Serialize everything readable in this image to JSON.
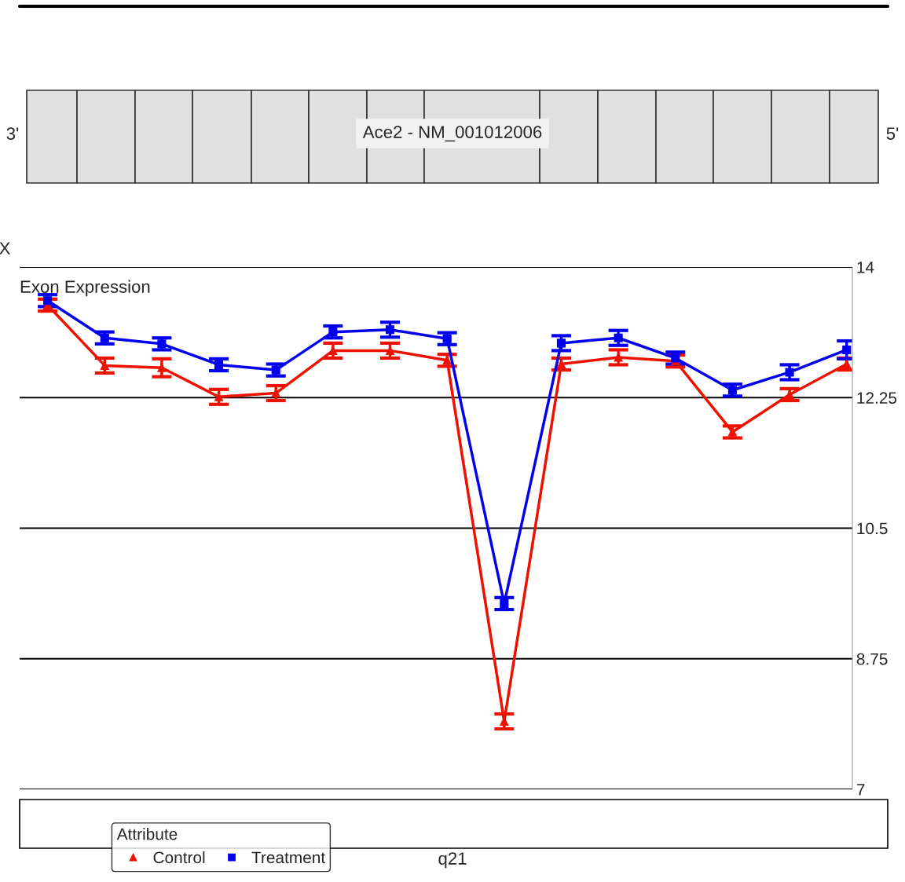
{
  "chart_data": {
    "type": "line",
    "title": "Exon Expression",
    "categories": [
      null,
      null,
      null,
      null,
      null,
      null,
      null,
      null,
      null,
      null,
      null,
      null,
      null,
      null,
      null
    ],
    "series": [
      {
        "name": "Control",
        "color": "#ee1100",
        "marker": "triangle",
        "values": [
          13.49,
          12.68,
          12.65,
          12.26,
          12.31,
          12.88,
          12.88,
          12.75,
          7.91,
          12.7,
          12.79,
          12.74,
          11.79,
          12.29,
          12.7
        ],
        "errors": [
          0.08,
          0.1,
          0.12,
          0.1,
          0.1,
          0.1,
          0.1,
          0.08,
          0.1,
          0.08,
          0.1,
          0.08,
          0.08,
          0.08,
          0.08
        ]
      },
      {
        "name": "Treatment",
        "color": "#0000ee",
        "marker": "square",
        "values": [
          13.55,
          13.05,
          12.97,
          12.69,
          12.62,
          13.13,
          13.16,
          13.04,
          9.49,
          12.98,
          13.05,
          12.78,
          12.35,
          12.59,
          12.89
        ],
        "errors": [
          0.08,
          0.08,
          0.08,
          0.08,
          0.08,
          0.08,
          0.1,
          0.08,
          0.08,
          0.1,
          0.1,
          0.08,
          0.08,
          0.1,
          0.12
        ]
      }
    ],
    "ylim": [
      7,
      14
    ],
    "yticks": [
      14,
      12.25,
      10.5,
      8.75,
      7
    ],
    "grid": "y",
    "tick_labels": "y",
    "legend": "bottom left",
    "legend_title": "Attribute",
    "line_style": "solid",
    "annotations": [
      "Ace2 - NM_001012006",
      "3'",
      "5'",
      "X",
      "q21"
    ]
  }
}
